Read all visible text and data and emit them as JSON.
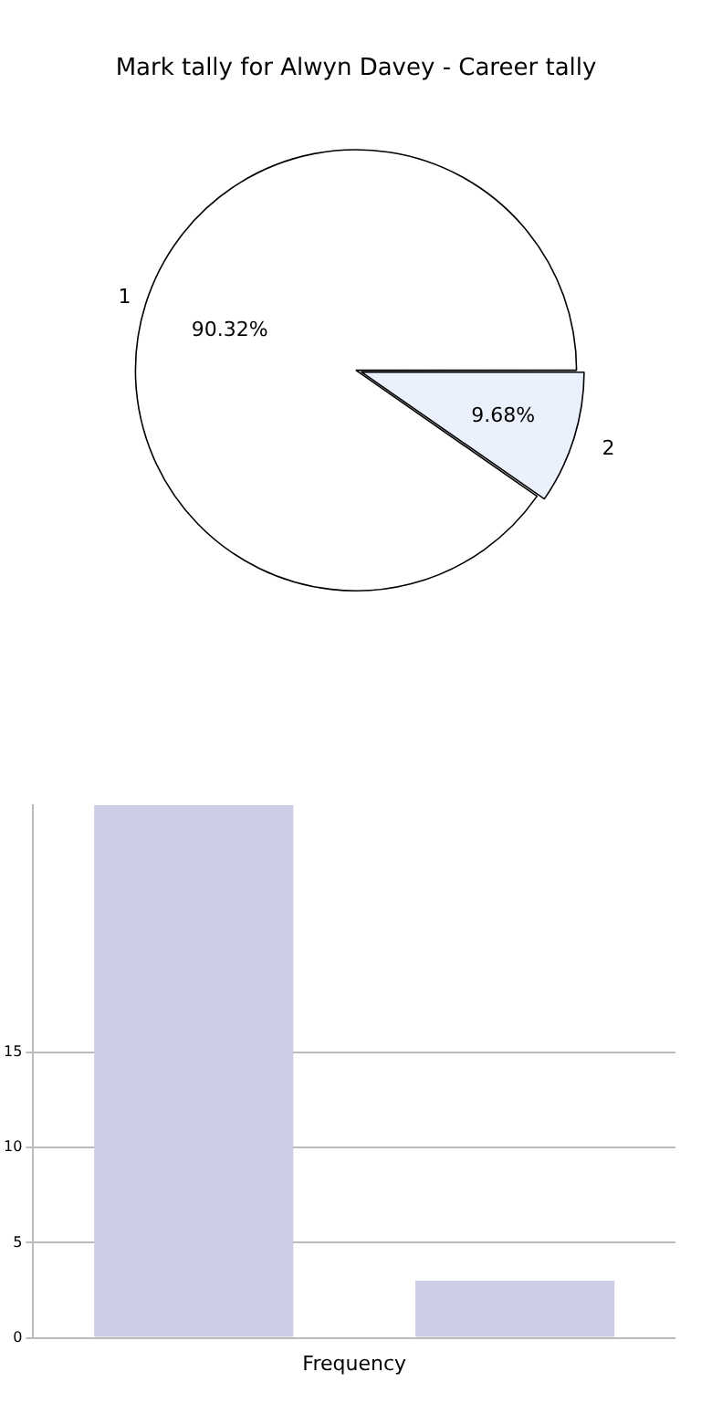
{
  "chart_data": [
    {
      "type": "pie",
      "title": "Mark tally for Alwyn Davey - Career tally",
      "categories": [
        "1",
        "2"
      ],
      "values": [
        90.32,
        9.68
      ],
      "value_labels": [
        "90.32%",
        "9.68%"
      ],
      "colors": [
        "#ffffff",
        "#eaf0fc"
      ],
      "legend": false
    },
    {
      "type": "bar",
      "xlabel": "Frequency",
      "categories": [
        null,
        null
      ],
      "values": [
        28,
        3
      ],
      "color": "#ccccE4",
      "ylim": [
        0,
        28
      ],
      "yticks": [
        0,
        5,
        10,
        15
      ],
      "grid": "y",
      "legend": false
    }
  ]
}
